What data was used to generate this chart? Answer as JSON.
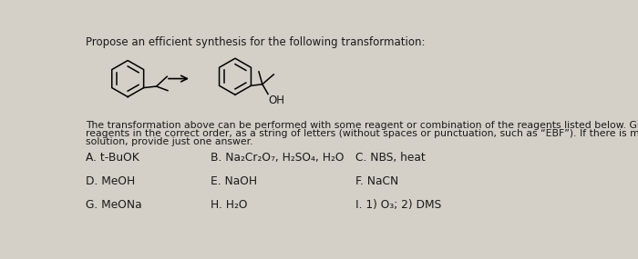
{
  "title": "Propose an efficient synthesis for the following transformation:",
  "bg_color": "#d4cfc7",
  "text_color": "#1a1a1a",
  "body_line1": "The transformation above can be performed with some reagent or combination of the reagents listed below. Give the necessary",
  "body_line2": "reagents in the correct order, as a string of letters (without spaces or punctuation, such as “EBF”). If there is more than one correct",
  "body_line3": "solution, provide just one answer.",
  "reagents": [
    {
      "label": "A.",
      "name": "t-BuOK",
      "col": 0,
      "row": 0
    },
    {
      "label": "B.",
      "name": "Na₂Cr₂O₇, H₂SO₄, H₂O",
      "col": 1,
      "row": 0
    },
    {
      "label": "C.",
      "name": "NBS, heat",
      "col": 2,
      "row": 0
    },
    {
      "label": "D.",
      "name": "MeOH",
      "col": 0,
      "row": 1
    },
    {
      "label": "E.",
      "name": "NaOH",
      "col": 1,
      "row": 1
    },
    {
      "label": "F.",
      "name": "NaCN",
      "col": 2,
      "row": 1
    },
    {
      "label": "G.",
      "name": "MeONa",
      "col": 0,
      "row": 2
    },
    {
      "label": "H.",
      "name": "H₂O",
      "col": 1,
      "row": 2
    },
    {
      "label": "I.",
      "name": "1) O₃; 2) DMS",
      "col": 2,
      "row": 2
    }
  ],
  "font_size_title": 8.5,
  "font_size_body": 7.8,
  "font_size_reagents": 8.8
}
